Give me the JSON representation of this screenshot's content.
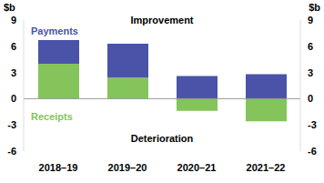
{
  "chart_data": {
    "type": "bar",
    "stacked": true,
    "categories": [
      "2018–19",
      "2019–20",
      "2020–21",
      "2021–22"
    ],
    "series": [
      {
        "name": "Receipts",
        "color": "#84c45a",
        "values": [
          4.0,
          2.4,
          -1.4,
          -2.6
        ]
      },
      {
        "name": "Payments",
        "color": "#4a53a8",
        "values": [
          2.7,
          3.9,
          2.6,
          2.8
        ]
      }
    ],
    "y_label": "$b",
    "y2_label": "$b",
    "ylim": [
      -6,
      9
    ],
    "yticks": [
      -6,
      -3,
      0,
      3,
      6,
      9
    ],
    "y2lim": [
      -6,
      9
    ],
    "y2ticks": [
      -6,
      -3,
      0,
      3,
      6,
      9
    ],
    "annotations": [
      "Improvement",
      "Deterioration"
    ]
  }
}
